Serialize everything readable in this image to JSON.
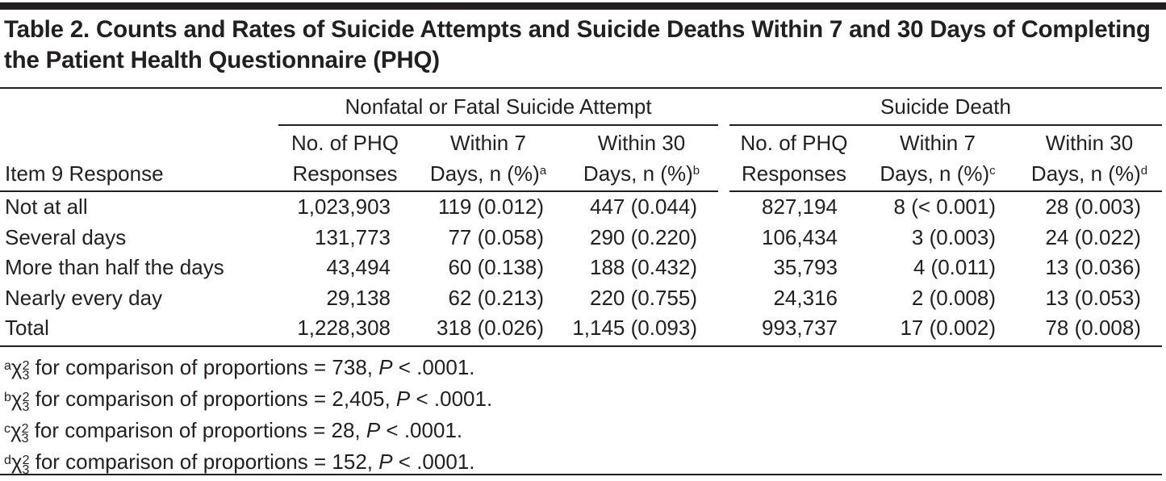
{
  "title": "Table 2. Counts and Rates of Suicide Attempts and Suicide Deaths Within 7 and 30 Days of Completing the Patient Health Questionnaire (PHQ)",
  "groups": [
    "Nonfatal or Fatal Suicide Attempt",
    "Suicide Death"
  ],
  "columns": [
    {
      "line1": "",
      "line2": "Item 9 Response",
      "sup": ""
    },
    {
      "line1": "No. of PHQ",
      "line2": "Responses",
      "sup": ""
    },
    {
      "line1": "Within 7",
      "line2": "Days, n (%)",
      "sup": "a"
    },
    {
      "line1": "Within 30",
      "line2": "Days, n (%)",
      "sup": "b"
    },
    {
      "line1": "No. of PHQ",
      "line2": "Responses",
      "sup": ""
    },
    {
      "line1": "Within 7",
      "line2": "Days, n (%)",
      "sup": "c"
    },
    {
      "line1": "Within 30",
      "line2": "Days, n (%)",
      "sup": "d"
    }
  ],
  "rows": [
    [
      "Not at all",
      "1,023,903",
      "119 (0.012)",
      "447 (0.044)",
      "827,194",
      "8 (< 0.001)",
      "28 (0.003)"
    ],
    [
      "Several days",
      "131,773",
      "77 (0.058)",
      "290 (0.220)",
      "106,434",
      "3 (0.003)",
      "24 (0.022)"
    ],
    [
      "More than half the days",
      "43,494",
      "60 (0.138)",
      "188 (0.432)",
      "35,793",
      "4 (0.011)",
      "13 (0.036)"
    ],
    [
      "Nearly every day",
      "29,138",
      "62 (0.213)",
      "220 (0.755)",
      "24,316",
      "2 (0.008)",
      "13 (0.053)"
    ],
    [
      "Total",
      "1,228,308",
      "318 (0.026)",
      "1,145 (0.093)",
      "993,737",
      "17 (0.002)",
      "78 (0.008)"
    ]
  ],
  "footnotes": [
    {
      "mark": "a",
      "chi": "χ",
      "exp": "2",
      "df": "3",
      "text": " for comparison of proportions = 738, ",
      "p": "P",
      "tail": " < .0001."
    },
    {
      "mark": "b",
      "chi": "χ",
      "exp": "2",
      "df": "3",
      "text": " for comparison of proportions = 2,405, ",
      "p": "P",
      "tail": " < .0001."
    },
    {
      "mark": "c",
      "chi": "χ",
      "exp": "2",
      "df": "3",
      "text": " for comparison of proportions = 28, ",
      "p": "P",
      "tail": " < .0001."
    },
    {
      "mark": "d",
      "chi": "χ",
      "exp": "2",
      "df": "3",
      "text": " for comparison of proportions = 152, ",
      "p": "P",
      "tail": " < .0001."
    }
  ]
}
